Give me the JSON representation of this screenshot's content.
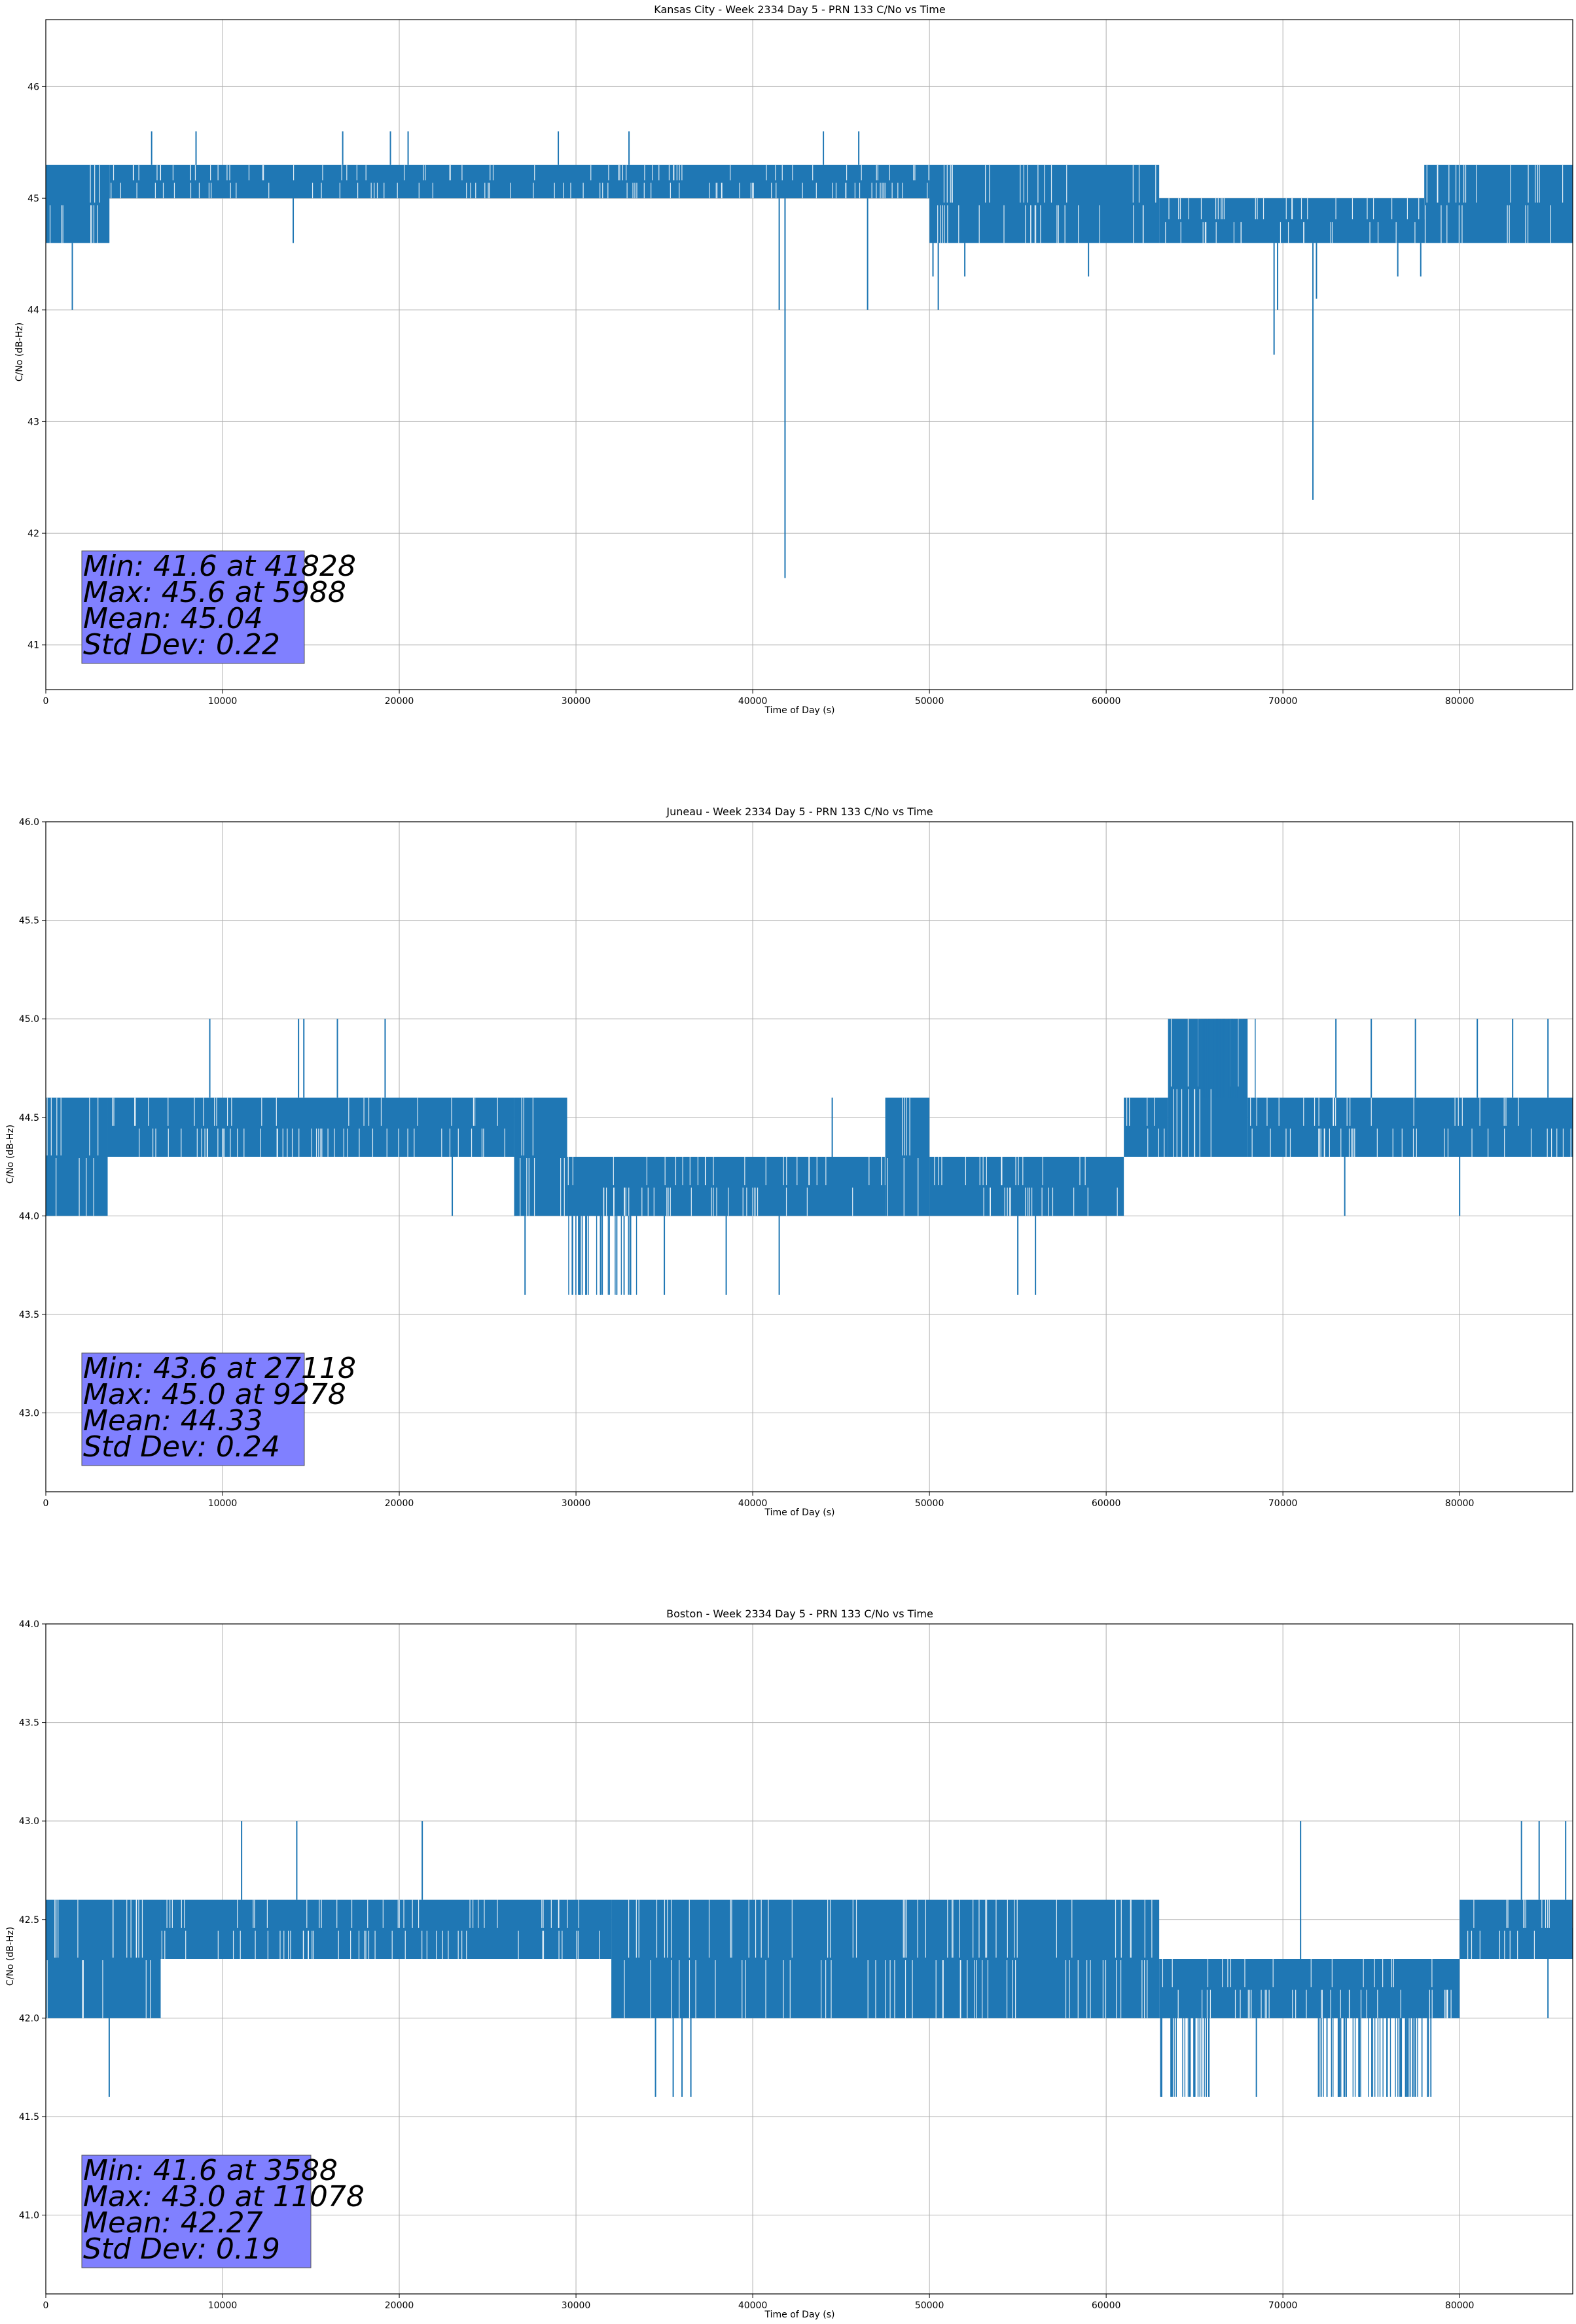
{
  "figure": {
    "series_color": "#1f77b4",
    "grid_color": "#b0b0b0",
    "stats_box_color": "#8080ff"
  },
  "chart_data": [
    {
      "type": "line",
      "title": "Kansas City - Week 2334 Day 5 - PRN 133 C/No vs Time",
      "xlabel": "Time of Day (s)",
      "ylabel": "C/No (dB-Hz)",
      "xlim": [
        0,
        86400
      ],
      "ylim": [
        40.6,
        46.6
      ],
      "xticks": [
        0,
        10000,
        20000,
        30000,
        40000,
        50000,
        60000,
        70000,
        80000
      ],
      "xtick_labels": [
        "0",
        "10000",
        "20000",
        "30000",
        "40000",
        "50000",
        "60000",
        "70000",
        "80000"
      ],
      "yticks": [
        41,
        42,
        43,
        44,
        45,
        46
      ],
      "ytick_labels": [
        "41",
        "42",
        "43",
        "44",
        "45",
        "46"
      ],
      "grid": true,
      "stats_text": [
        "Min: 41.6 at 41828",
        "Max: 45.6 at 5988",
        "Mean: 45.04",
        "Std Dev: 0.22"
      ],
      "series": [
        {
          "band_segments": [
            {
              "x0": 0,
              "x1": 3600,
              "low": 44.6,
              "high": 45.3
            },
            {
              "x0": 3600,
              "x1": 50000,
              "low": 45.0,
              "high": 45.3
            },
            {
              "x0": 50000,
              "x1": 63000,
              "low": 44.6,
              "high": 45.3
            },
            {
              "x0": 63000,
              "x1": 78000,
              "low": 44.6,
              "high": 45.0
            },
            {
              "x0": 78000,
              "x1": 86400,
              "low": 44.6,
              "high": 45.3
            }
          ],
          "spikes": [
            {
              "x": 1500,
              "y": 44.0
            },
            {
              "x": 5988,
              "y": 45.6
            },
            {
              "x": 8500,
              "y": 45.6
            },
            {
              "x": 14000,
              "y": 44.6
            },
            {
              "x": 16800,
              "y": 45.6
            },
            {
              "x": 19500,
              "y": 45.6
            },
            {
              "x": 20500,
              "y": 45.6
            },
            {
              "x": 29000,
              "y": 45.6
            },
            {
              "x": 33000,
              "y": 45.6
            },
            {
              "x": 41500,
              "y": 44.0
            },
            {
              "x": 41828,
              "y": 41.6
            },
            {
              "x": 44000,
              "y": 45.6
            },
            {
              "x": 46000,
              "y": 45.6
            },
            {
              "x": 46500,
              "y": 44.0
            },
            {
              "x": 50200,
              "y": 44.3
            },
            {
              "x": 50500,
              "y": 44.0
            },
            {
              "x": 52000,
              "y": 44.3
            },
            {
              "x": 59000,
              "y": 44.3
            },
            {
              "x": 69500,
              "y": 43.6
            },
            {
              "x": 69700,
              "y": 44.0
            },
            {
              "x": 71700,
              "y": 42.3
            },
            {
              "x": 71900,
              "y": 44.1
            },
            {
              "x": 76500,
              "y": 44.3
            },
            {
              "x": 77800,
              "y": 44.3
            }
          ]
        }
      ]
    },
    {
      "type": "line",
      "title": "Juneau - Week 2334 Day 5 - PRN 133 C/No vs Time",
      "xlabel": "Time of Day (s)",
      "ylabel": "C/No (dB-Hz)",
      "xlim": [
        0,
        86400
      ],
      "ylim": [
        42.6,
        46.0
      ],
      "xticks": [
        0,
        10000,
        20000,
        30000,
        40000,
        50000,
        60000,
        70000,
        80000
      ],
      "xtick_labels": [
        "0",
        "10000",
        "20000",
        "30000",
        "40000",
        "50000",
        "60000",
        "70000",
        "80000"
      ],
      "yticks": [
        43.0,
        43.5,
        44.0,
        44.5,
        45.0,
        45.5,
        46.0
      ],
      "ytick_labels": [
        "43.0",
        "43.5",
        "44.0",
        "44.5",
        "45.0",
        "45.5",
        "46.0"
      ],
      "grid": true,
      "stats_text": [
        "Min: 43.6 at 27118",
        "Max: 45.0 at 9278",
        "Mean: 44.33",
        "Std Dev: 0.24"
      ],
      "series": [
        {
          "band_segments": [
            {
              "x0": 0,
              "x1": 3500,
              "low": 44.0,
              "high": 44.6
            },
            {
              "x0": 3500,
              "x1": 26500,
              "low": 44.3,
              "high": 44.6
            },
            {
              "x0": 26500,
              "x1": 29500,
              "low": 44.0,
              "high": 44.6
            },
            {
              "x0": 29500,
              "x1": 47500,
              "low": 44.0,
              "high": 44.3
            },
            {
              "x0": 47500,
              "x1": 50000,
              "low": 44.0,
              "high": 44.6
            },
            {
              "x0": 50000,
              "x1": 61000,
              "low": 44.0,
              "high": 44.3
            },
            {
              "x0": 61000,
              "x1": 63500,
              "low": 44.3,
              "high": 44.6
            },
            {
              "x0": 63500,
              "x1": 68000,
              "low": 44.3,
              "high": 45.0
            },
            {
              "x0": 68000,
              "x1": 86400,
              "low": 44.3,
              "high": 44.6
            }
          ],
          "sub_bands": [
            {
              "x0": 29500,
              "x1": 33500,
              "low": 43.6,
              "high": 44.0
            },
            {
              "x0": 65000,
              "x1": 68500,
              "low": 44.6,
              "high": 45.0
            }
          ],
          "spikes": [
            {
              "x": 9278,
              "y": 45.0
            },
            {
              "x": 14300,
              "y": 45.0
            },
            {
              "x": 14600,
              "y": 45.0
            },
            {
              "x": 16500,
              "y": 45.0
            },
            {
              "x": 19200,
              "y": 45.0
            },
            {
              "x": 27118,
              "y": 43.6
            },
            {
              "x": 23000,
              "y": 44.0
            },
            {
              "x": 35000,
              "y": 43.6
            },
            {
              "x": 38500,
              "y": 43.6
            },
            {
              "x": 41500,
              "y": 43.6
            },
            {
              "x": 55000,
              "y": 43.6
            },
            {
              "x": 56000,
              "y": 43.6
            },
            {
              "x": 44500,
              "y": 44.6
            },
            {
              "x": 73000,
              "y": 45.0
            },
            {
              "x": 75000,
              "y": 45.0
            },
            {
              "x": 77500,
              "y": 45.0
            },
            {
              "x": 81000,
              "y": 45.0
            },
            {
              "x": 83000,
              "y": 45.0
            },
            {
              "x": 85000,
              "y": 45.0
            },
            {
              "x": 73500,
              "y": 44.0
            },
            {
              "x": 80000,
              "y": 44.0
            }
          ]
        }
      ]
    },
    {
      "type": "line",
      "title": "Boston - Week 2334 Day 5 - PRN 133 C/No vs Time",
      "xlabel": "Time of Day (s)",
      "ylabel": "C/No (dB-Hz)",
      "xlim": [
        0,
        86400
      ],
      "ylim": [
        40.6,
        44.0
      ],
      "xticks": [
        0,
        10000,
        20000,
        30000,
        40000,
        50000,
        60000,
        70000,
        80000
      ],
      "xtick_labels": [
        "0",
        "10000",
        "20000",
        "30000",
        "40000",
        "50000",
        "60000",
        "70000",
        "80000"
      ],
      "yticks": [
        41.0,
        41.5,
        42.0,
        42.5,
        43.0,
        43.5,
        44.0
      ],
      "ytick_labels": [
        "41.0",
        "41.5",
        "42.0",
        "42.5",
        "43.0",
        "43.5",
        "44.0"
      ],
      "grid": true,
      "stats_text": [
        "Min: 41.6 at 3588",
        "Max: 43.0 at 11078",
        "Mean: 42.27",
        "Std Dev: 0.19"
      ],
      "series": [
        {
          "band_segments": [
            {
              "x0": 0,
              "x1": 6500,
              "low": 42.0,
              "high": 42.6
            },
            {
              "x0": 6500,
              "x1": 32000,
              "low": 42.3,
              "high": 42.6
            },
            {
              "x0": 32000,
              "x1": 63000,
              "low": 42.0,
              "high": 42.6
            },
            {
              "x0": 63000,
              "x1": 80000,
              "low": 42.0,
              "high": 42.3
            },
            {
              "x0": 80000,
              "x1": 86400,
              "low": 42.3,
              "high": 42.6
            }
          ],
          "sub_bands": [
            {
              "x0": 63000,
              "x1": 66000,
              "low": 41.6,
              "high": 42.0
            },
            {
              "x0": 72000,
              "x1": 78500,
              "low": 41.6,
              "high": 42.0
            }
          ],
          "spikes": [
            {
              "x": 3588,
              "y": 41.6
            },
            {
              "x": 11078,
              "y": 43.0
            },
            {
              "x": 14200,
              "y": 43.0
            },
            {
              "x": 21300,
              "y": 43.0
            },
            {
              "x": 34500,
              "y": 41.6
            },
            {
              "x": 35500,
              "y": 41.6
            },
            {
              "x": 36000,
              "y": 41.6
            },
            {
              "x": 36500,
              "y": 41.6
            },
            {
              "x": 68500,
              "y": 41.6
            },
            {
              "x": 71000,
              "y": 43.0
            },
            {
              "x": 83500,
              "y": 43.0
            },
            {
              "x": 84500,
              "y": 43.0
            },
            {
              "x": 86000,
              "y": 43.0
            },
            {
              "x": 85000,
              "y": 42.0
            },
            {
              "x": 77000,
              "y": 41.6
            }
          ]
        }
      ]
    }
  ]
}
